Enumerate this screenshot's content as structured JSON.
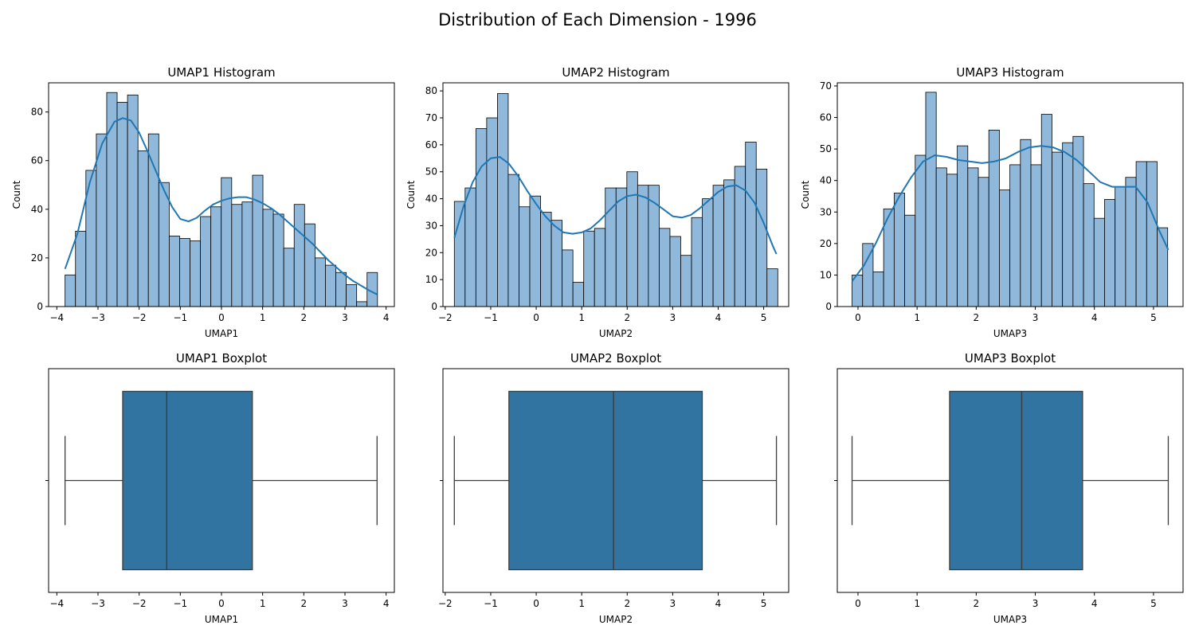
{
  "figure": {
    "suptitle": "Distribution of Each Dimension - 1996"
  },
  "colors": {
    "hist_fill": "#8fb8da",
    "kde_line": "#1f77b4",
    "box_fill": "#3274a1",
    "box_line": "#3d3d3d"
  },
  "chart_data": [
    {
      "type": "bar",
      "variant": "histogram",
      "title": "UMAP1 Histogram",
      "xlabel": "UMAP1",
      "ylabel": "Count",
      "xlim": [
        -4.2,
        4.2
      ],
      "ylim": [
        0,
        92
      ],
      "xticks": [
        -4,
        -3,
        -2,
        -1,
        0,
        1,
        2,
        3,
        4
      ],
      "yticks": [
        0,
        20,
        40,
        60,
        80
      ],
      "bin_start": -3.8,
      "bin_width": 0.253,
      "values": [
        13,
        31,
        56,
        71,
        88,
        84,
        87,
        64,
        71,
        51,
        29,
        28,
        27,
        37,
        41,
        53,
        42,
        43,
        54,
        40,
        38,
        24,
        42,
        34,
        20,
        17,
        14,
        9,
        2,
        14
      ],
      "kde": {
        "x": [
          -3.8,
          -3.5,
          -3.2,
          -2.9,
          -2.6,
          -2.4,
          -2.2,
          -2.0,
          -1.8,
          -1.6,
          -1.4,
          -1.2,
          -1.0,
          -0.8,
          -0.6,
          -0.4,
          -0.2,
          0.0,
          0.2,
          0.4,
          0.6,
          0.8,
          1.0,
          1.2,
          1.4,
          1.6,
          1.8,
          2.0,
          2.2,
          2.4,
          2.6,
          2.8,
          3.0,
          3.2,
          3.4,
          3.6,
          3.78
        ],
        "y": [
          15.5,
          30,
          51,
          67,
          76,
          77.5,
          76.5,
          71.5,
          64,
          56,
          48,
          41,
          36,
          35,
          36.5,
          39.5,
          42,
          43.5,
          44.5,
          45,
          45,
          44,
          42.5,
          40.5,
          38,
          35,
          32,
          29,
          26,
          22.5,
          19,
          16,
          13,
          10.5,
          8.5,
          6.5,
          5
        ]
      }
    },
    {
      "type": "bar",
      "variant": "histogram",
      "title": "UMAP2 Histogram",
      "xlabel": "UMAP2",
      "ylabel": "Count",
      "xlim": [
        -2.05,
        5.55
      ],
      "ylim": [
        0,
        83
      ],
      "xticks": [
        -2,
        -1,
        0,
        1,
        2,
        3,
        4,
        5
      ],
      "yticks": [
        0,
        10,
        20,
        30,
        40,
        50,
        60,
        70,
        80
      ],
      "bin_start": -1.8,
      "bin_width": 0.237,
      "values": [
        39,
        44,
        66,
        70,
        79,
        49,
        37,
        41,
        35,
        32,
        21,
        9,
        28,
        29,
        44,
        44,
        50,
        45,
        45,
        29,
        26,
        19,
        33,
        40,
        45,
        47,
        52,
        61,
        51,
        14
      ],
      "kde": {
        "x": [
          -1.8,
          -1.6,
          -1.4,
          -1.2,
          -1.0,
          -0.8,
          -0.6,
          -0.4,
          -0.2,
          0.0,
          0.2,
          0.4,
          0.6,
          0.8,
          1.0,
          1.2,
          1.4,
          1.6,
          1.8,
          2.0,
          2.2,
          2.4,
          2.6,
          2.8,
          3.0,
          3.2,
          3.4,
          3.6,
          3.8,
          4.0,
          4.2,
          4.4,
          4.6,
          4.8,
          5.0,
          5.2,
          5.28
        ],
        "y": [
          25.5,
          37,
          46,
          52,
          55,
          55.5,
          53,
          48.5,
          43,
          38,
          33.5,
          30,
          27.5,
          27,
          27.5,
          29,
          32,
          35.5,
          39,
          41,
          41.5,
          40.5,
          38.5,
          36,
          33.5,
          33,
          34,
          36.5,
          39.5,
          42.5,
          44.5,
          45,
          43,
          38.5,
          31,
          22.5,
          19.5
        ]
      }
    },
    {
      "type": "bar",
      "variant": "histogram",
      "title": "UMAP3 Histogram",
      "xlabel": "UMAP3",
      "ylabel": "Count",
      "xlim": [
        -0.35,
        5.5
      ],
      "ylim": [
        0,
        71
      ],
      "xticks": [
        0,
        1,
        2,
        3,
        4,
        5
      ],
      "yticks": [
        0,
        10,
        20,
        30,
        40,
        50,
        60,
        70
      ],
      "bin_start": -0.1,
      "bin_width": 0.178,
      "values": [
        10,
        20,
        11,
        31,
        36,
        29,
        48,
        68,
        44,
        42,
        51,
        44,
        41,
        56,
        37,
        45,
        53,
        45,
        61,
        49,
        52,
        54,
        39,
        28,
        34,
        38,
        41,
        46,
        46,
        25
      ],
      "kde": {
        "x": [
          -0.1,
          0.1,
          0.3,
          0.5,
          0.7,
          0.9,
          1.1,
          1.3,
          1.5,
          1.7,
          1.9,
          2.1,
          2.3,
          2.5,
          2.7,
          2.9,
          3.1,
          3.3,
          3.5,
          3.7,
          3.9,
          4.1,
          4.3,
          4.5,
          4.7,
          4.9,
          5.1,
          5.25
        ],
        "y": [
          8,
          13,
          20,
          28,
          35,
          41,
          46,
          48,
          47.5,
          46.5,
          46,
          45.5,
          46,
          47,
          49,
          50.5,
          51,
          50.5,
          49,
          46.5,
          43,
          39.5,
          38,
          38,
          38,
          33,
          24,
          18
        ]
      }
    },
    {
      "type": "boxplot",
      "title": "UMAP1 Boxplot",
      "xlabel": "UMAP1",
      "xlim": [
        -4.2,
        4.2
      ],
      "xticks": [
        -4,
        -3,
        -2,
        -1,
        0,
        1,
        2,
        3,
        4
      ],
      "whisker_low": -3.8,
      "q1": -2.4,
      "median": -1.33,
      "q3": 0.75,
      "whisker_high": 3.78
    },
    {
      "type": "boxplot",
      "title": "UMAP2 Boxplot",
      "xlabel": "UMAP2",
      "xlim": [
        -2.05,
        5.55
      ],
      "xticks": [
        -2,
        -1,
        0,
        1,
        2,
        3,
        4,
        5
      ],
      "whisker_low": -1.8,
      "q1": -0.6,
      "median": 1.7,
      "q3": 3.65,
      "whisker_high": 5.28
    },
    {
      "type": "boxplot",
      "title": "UMAP3 Boxplot",
      "xlabel": "UMAP3",
      "xlim": [
        -0.35,
        5.5
      ],
      "xticks": [
        0,
        1,
        2,
        3,
        4,
        5
      ],
      "whisker_low": -0.1,
      "q1": 1.55,
      "median": 2.77,
      "q3": 3.8,
      "whisker_high": 5.25
    }
  ]
}
